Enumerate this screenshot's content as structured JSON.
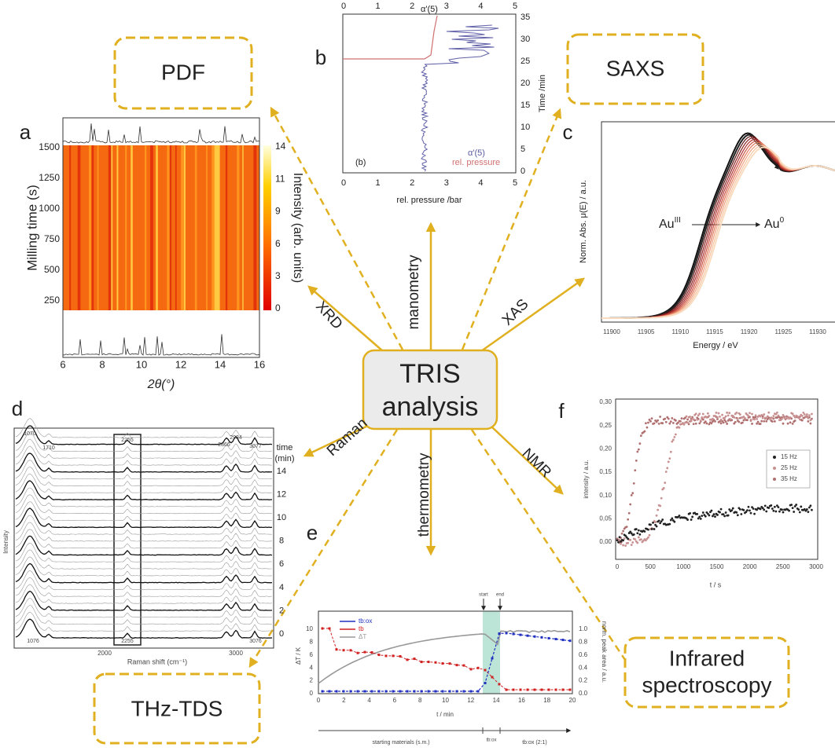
{
  "center": {
    "line1": "TRIS",
    "line2": "analysis"
  },
  "methods": {
    "xrd": "XRD",
    "manometry": "manometry",
    "xas": "XAS",
    "raman": "Raman",
    "thermometry": "thermometry",
    "nmr": "NMR"
  },
  "techniques": {
    "pdf": "PDF",
    "saxs": "SAXS",
    "thz": "THz-TDS",
    "ir_line1": "Infrared",
    "ir_line2": "spectroscopy"
  },
  "panel_a": {
    "letter": "a",
    "xlabel": "2θ(°)",
    "ylabel": "Milling time (s)",
    "colorbar_label": "Intensity (arb. units)",
    "xticks": [
      "6",
      "8",
      "10",
      "12",
      "14",
      "16"
    ],
    "yticks": [
      "250",
      "500",
      "750",
      "1000",
      "1250",
      "1500"
    ],
    "colorbar_ticks": [
      "0",
      "3",
      "6",
      "9",
      "11",
      "14"
    ]
  },
  "panel_b": {
    "letter": "b",
    "top_label": "α'(5)",
    "xlabel": "rel. pressure /bar",
    "ylabel": "Time /min",
    "top_ticks": [
      "0",
      "1",
      "2",
      "3",
      "4",
      "5"
    ],
    "bottom_ticks": [
      "0",
      "1",
      "2",
      "3",
      "4",
      "5"
    ],
    "right_ticks": [
      "0",
      "5",
      "10",
      "15",
      "20",
      "25",
      "30",
      "35"
    ],
    "legend": [
      "α'(5)",
      "rel. pressure"
    ],
    "inset": "(b)"
  },
  "panel_c": {
    "letter": "c",
    "xlabel": "Energy / eV",
    "ylabel": "Norm. Abs. μ(E) / a.u.",
    "xticks": [
      "11900",
      "11905",
      "11910",
      "11915",
      "11920",
      "11925",
      "11930"
    ],
    "start": "Au",
    "start_sup": "III",
    "end": "Au",
    "end_sup": "0"
  },
  "panel_d": {
    "letter": "d",
    "xlabel": "Raman shift (cm⁻¹)",
    "ylabel": "Intensity",
    "time_label_1": "time",
    "time_label_2": "(min)",
    "time_ticks": [
      "14",
      "12",
      "10",
      "8",
      "6",
      "4",
      "2",
      "0"
    ],
    "xticks": [
      "2000",
      "3000"
    ],
    "peaks_top": [
      "1070",
      "1710",
      "2255",
      "2866",
      "2934",
      "3077"
    ],
    "peaks_bottom": [
      "1076",
      "2255",
      "3076"
    ]
  },
  "panel_e": {
    "letter": "e",
    "xlabel": "t / min",
    "ylabel": "ΔT / K",
    "y2label": "norm. peak area / a.u.",
    "xticks": [
      "0",
      "2",
      "4",
      "6",
      "8",
      "10",
      "12",
      "14",
      "16",
      "18",
      "20"
    ],
    "yticks": [
      "0",
      "2",
      "4",
      "6",
      "8",
      "10"
    ],
    "y2ticks": [
      "0.0",
      "0.2",
      "0.4",
      "0.6",
      "0.8",
      "1.0"
    ],
    "legend": [
      "tb:ox",
      "tb",
      "ΔT"
    ],
    "markers": [
      "start",
      "end"
    ],
    "timeline": [
      "starting materials (s.m.)",
      "tb:ox",
      "tb:ox (2:1)"
    ]
  },
  "panel_f": {
    "letter": "f",
    "xlabel": "t / s",
    "ylabel": "intensity / a.u.",
    "xticks": [
      "0",
      "500",
      "1000",
      "1500",
      "2000",
      "2500",
      "3000"
    ],
    "yticks": [
      "0,00",
      "0,05",
      "0,10",
      "0,15",
      "0,20",
      "0,25",
      "0,30"
    ],
    "legend": [
      "15 Hz",
      "25 Hz",
      "35 Hz"
    ]
  }
}
